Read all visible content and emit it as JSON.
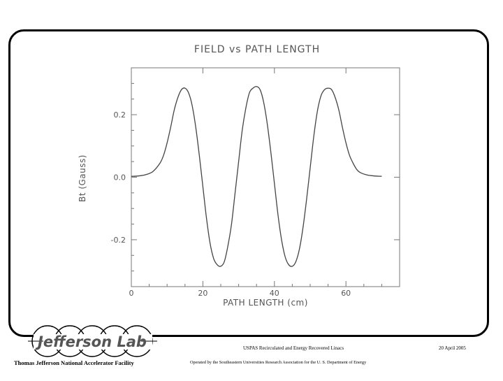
{
  "chart_data": {
    "type": "line",
    "title": "FIELD vs PATH LENGTH",
    "xlabel": "PATH LENGTH (cm)",
    "ylabel": "Bt (Gauss)",
    "xlim": [
      0,
      75
    ],
    "ylim": [
      -0.35,
      0.35
    ],
    "xticks": [
      0,
      20,
      40,
      60
    ],
    "yticks": [
      0.2,
      0.0,
      -0.2
    ],
    "xtick_labels": [
      "0",
      "20",
      "40",
      "60"
    ],
    "ytick_labels": [
      "0.2",
      "0.0",
      "-0.2"
    ],
    "series": [
      {
        "x": [
          0,
          2,
          4,
          6,
          8,
          9,
          10,
          11,
          12,
          13,
          14,
          15,
          16,
          17,
          18,
          19,
          20,
          21,
          22,
          23,
          24,
          25,
          26,
          27,
          28,
          29,
          30,
          31,
          32,
          33,
          34,
          35,
          36,
          37,
          38,
          39,
          40,
          41,
          42,
          43,
          44,
          45,
          46,
          47,
          48,
          49,
          50,
          51,
          52,
          53,
          54,
          55,
          56,
          57,
          58,
          59,
          60,
          61,
          62,
          63,
          64,
          66,
          68,
          70
        ],
        "y": [
          0.003,
          0.004,
          0.008,
          0.018,
          0.045,
          0.07,
          0.11,
          0.16,
          0.215,
          0.255,
          0.28,
          0.285,
          0.27,
          0.23,
          0.16,
          0.07,
          -0.03,
          -0.13,
          -0.21,
          -0.26,
          -0.28,
          -0.285,
          -0.27,
          -0.22,
          -0.15,
          -0.05,
          0.05,
          0.15,
          0.22,
          0.27,
          0.285,
          0.29,
          0.28,
          0.24,
          0.17,
          0.08,
          -0.02,
          -0.12,
          -0.2,
          -0.255,
          -0.28,
          -0.285,
          -0.27,
          -0.23,
          -0.16,
          -0.07,
          0.03,
          0.13,
          0.21,
          0.26,
          0.28,
          0.285,
          0.28,
          0.255,
          0.215,
          0.16,
          0.11,
          0.07,
          0.045,
          0.025,
          0.015,
          0.007,
          0.004,
          0.003
        ]
      }
    ]
  },
  "footer": {
    "course_title": "USPAS Recirculated and Energy Recovered Linacs",
    "date": "20 April 2005",
    "facility": "Thomas Jefferson National Accelerator Facility",
    "operator": "Operated by the Southeastern Universities Research Association for the U. S. Department of Energy",
    "logo_text": "Jefferson Lab"
  }
}
